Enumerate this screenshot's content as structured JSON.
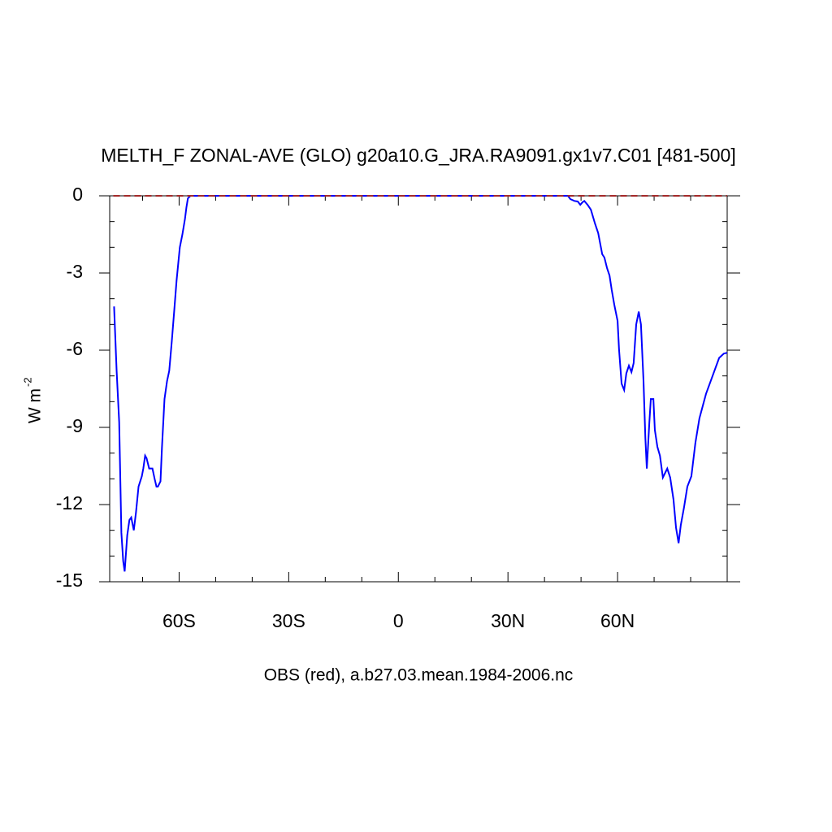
{
  "chart_data": {
    "type": "line",
    "title": "MELTH_F ZONAL-AVE (GLO) g20a10.G_JRA.RA9091.gx1v7.C01 [481-500]",
    "xlabel": "OBS (red), a.b27.03.mean.1984-2006.nc",
    "ylabel": "W m",
    "ylabel_superscript": "-2",
    "xlim": [
      -79,
      90
    ],
    "ylim": [
      -15,
      0
    ],
    "xticks": [
      {
        "value": -60,
        "label": "60S"
      },
      {
        "value": -30,
        "label": "30S"
      },
      0,
      {
        "value": 30,
        "label": "30N"
      },
      {
        "value": 60,
        "label": "60N"
      }
    ],
    "xminorticks": [
      -70,
      -50,
      -40,
      -20,
      -10,
      10,
      20,
      40,
      50,
      70,
      80
    ],
    "yticks": [
      0,
      -3,
      -6,
      -9,
      -12,
      -15
    ],
    "yminorticks": [
      -1,
      -2,
      -4,
      -5,
      -7,
      -8,
      -10,
      -11,
      -13,
      -14
    ],
    "series": [
      {
        "color": "#0000ff",
        "dashed": false,
        "x": [
          -77.8,
          -77.1,
          -76.4,
          -75.8,
          -75.3,
          -74.9,
          -74.2,
          -73.6,
          -73.1,
          -72.4,
          -71.8,
          -71.1,
          -70.2,
          -69.8,
          -69.3,
          -68.9,
          -68.2,
          -67.3,
          -66.7,
          -66.2,
          -65.8,
          -65.1,
          -64.7,
          -64.0,
          -63.3,
          -62.7,
          -62.0,
          -61.3,
          -60.7,
          -59.8,
          -59.1,
          -58.4,
          -58.0,
          -57.6,
          -56.9,
          46.4,
          47.1,
          48.2,
          49.1,
          49.8,
          50.4,
          50.9,
          51.8,
          52.7,
          53.8,
          54.7,
          55.8,
          56.4,
          57.1,
          57.8,
          58.4,
          59.1,
          60.0,
          60.4,
          61.1,
          61.8,
          62.4,
          63.1,
          63.8,
          64.4,
          65.1,
          65.8,
          66.4,
          67.1,
          67.6,
          68.0,
          68.7,
          69.1,
          69.8,
          70.2,
          70.9,
          71.6,
          72.4,
          73.6,
          74.4,
          75.3,
          76.0,
          76.7,
          77.3,
          78.2,
          79.1,
          80.2,
          81.3,
          82.4,
          84.2,
          86.0,
          87.8,
          89.1,
          90.0
        ],
        "values": [
          -4.3,
          -6.8,
          -8.8,
          -13.1,
          -14.2,
          -14.6,
          -13.2,
          -12.6,
          -12.5,
          -13.0,
          -12.3,
          -11.3,
          -10.9,
          -10.6,
          -10.1,
          -10.2,
          -10.6,
          -10.6,
          -11.0,
          -11.3,
          -11.3,
          -11.1,
          -9.8,
          -7.9,
          -7.2,
          -6.8,
          -5.65,
          -4.4,
          -3.3,
          -2.0,
          -1.5,
          -0.9,
          -0.45,
          -0.1,
          0,
          0,
          -0.13,
          -0.2,
          -0.22,
          -0.35,
          -0.25,
          -0.2,
          -0.35,
          -0.54,
          -1.07,
          -1.45,
          -2.27,
          -2.4,
          -2.8,
          -3.1,
          -3.66,
          -4.23,
          -4.86,
          -5.97,
          -7.3,
          -7.55,
          -6.9,
          -6.6,
          -6.85,
          -6.5,
          -5.0,
          -4.5,
          -5.0,
          -7.2,
          -9.4,
          -10.6,
          -8.8,
          -7.9,
          -7.9,
          -9.1,
          -9.76,
          -10.1,
          -10.95,
          -10.6,
          -10.95,
          -11.8,
          -12.9,
          -13.5,
          -12.8,
          -12.1,
          -11.3,
          -10.9,
          -9.6,
          -8.65,
          -7.7,
          -7.0,
          -6.3,
          -6.13,
          -6.1
        ]
      },
      {
        "color": "#a52a2a",
        "dashed": true,
        "x": [
          -78,
          90
        ],
        "values": [
          0,
          0
        ]
      }
    ]
  }
}
